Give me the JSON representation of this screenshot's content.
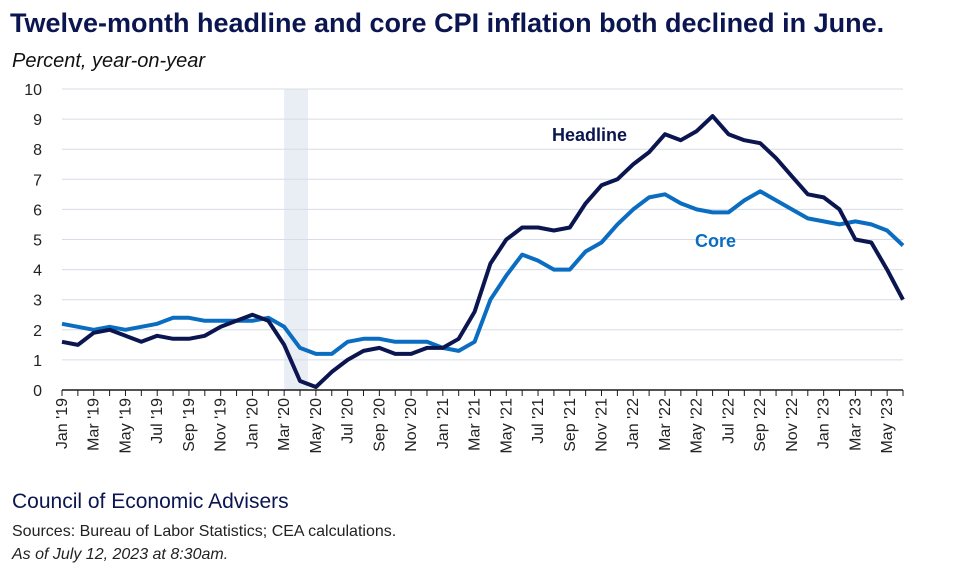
{
  "title": "Twelve-month headline and core CPI inflation both declined in June.",
  "subtitle": "Percent, year-on-year",
  "footer": {
    "org": "Council of Economic Advisers",
    "sources": "Sources: Bureau of Labor Statistics; CEA calculations.",
    "as_of": "As of July 12, 2023 at 8:30am."
  },
  "colors": {
    "headline": "#0b1650",
    "core": "#0a6dc2",
    "recession_shade": "#e9edf4",
    "grid": "#d7dce6"
  },
  "chart_data": {
    "type": "line",
    "title": "Twelve-month headline and core CPI inflation both declined in June.",
    "ylabel": "Percent, year-on-year",
    "ylim": [
      0,
      10
    ],
    "yticks": [
      0,
      1,
      2,
      3,
      4,
      5,
      6,
      7,
      8,
      9,
      10
    ],
    "grid": "horizontal",
    "shaded_range": [
      "Mar '20",
      "Apr '20"
    ],
    "x": [
      "Jan '19",
      "Feb '19",
      "Mar '19",
      "Apr '19",
      "May '19",
      "Jun '19",
      "Jul '19",
      "Aug '19",
      "Sep '19",
      "Oct '19",
      "Nov '19",
      "Dec '19",
      "Jan '20",
      "Feb '20",
      "Mar '20",
      "Apr '20",
      "May '20",
      "Jun '20",
      "Jul '20",
      "Aug '20",
      "Sep '20",
      "Oct '20",
      "Nov '20",
      "Dec '20",
      "Jan '21",
      "Feb '21",
      "Mar '21",
      "Apr '21",
      "May '21",
      "Jun '21",
      "Jul '21",
      "Aug '21",
      "Sep '21",
      "Oct '21",
      "Nov '21",
      "Dec '21",
      "Jan '22",
      "Feb '22",
      "Mar '22",
      "Apr '22",
      "May '22",
      "Jun '22",
      "Jul '22",
      "Aug '22",
      "Sep '22",
      "Oct '22",
      "Nov '22",
      "Dec '22",
      "Jan '23",
      "Feb '23",
      "Mar '23",
      "Apr '23",
      "May '23",
      "Jun '23"
    ],
    "xtick_labels": [
      "Jan '19",
      "Mar '19",
      "May '19",
      "Jul '19",
      "Sep '19",
      "Nov '19",
      "Jan '20",
      "Mar '20",
      "May '20",
      "Jul '20",
      "Sep '20",
      "Nov '20",
      "Jan '21",
      "Mar '21",
      "May '21",
      "Jul '21",
      "Sep '21",
      "Nov '21",
      "Jan '22",
      "Mar '22",
      "May '22",
      "Jul '22",
      "Sep '22",
      "Nov '22",
      "Jan '23",
      "Mar '23",
      "May '23"
    ],
    "series": [
      {
        "name": "Headline",
        "values": [
          1.6,
          1.5,
          1.9,
          2.0,
          1.8,
          1.6,
          1.8,
          1.7,
          1.7,
          1.8,
          2.1,
          2.3,
          2.5,
          2.3,
          1.5,
          0.3,
          0.1,
          0.6,
          1.0,
          1.3,
          1.4,
          1.2,
          1.2,
          1.4,
          1.4,
          1.7,
          2.6,
          4.2,
          5.0,
          5.4,
          5.4,
          5.3,
          5.4,
          6.2,
          6.8,
          7.0,
          7.5,
          7.9,
          8.5,
          8.3,
          8.6,
          9.1,
          8.5,
          8.3,
          8.2,
          7.7,
          7.1,
          6.5,
          6.4,
          6.0,
          5.0,
          4.9,
          4.0,
          3.0
        ]
      },
      {
        "name": "Core",
        "values": [
          2.2,
          2.1,
          2.0,
          2.1,
          2.0,
          2.1,
          2.2,
          2.4,
          2.4,
          2.3,
          2.3,
          2.3,
          2.3,
          2.4,
          2.1,
          1.4,
          1.2,
          1.2,
          1.6,
          1.7,
          1.7,
          1.6,
          1.6,
          1.6,
          1.4,
          1.3,
          1.6,
          3.0,
          3.8,
          4.5,
          4.3,
          4.0,
          4.0,
          4.6,
          4.9,
          5.5,
          6.0,
          6.4,
          6.5,
          6.2,
          6.0,
          5.9,
          5.9,
          6.3,
          6.6,
          6.3,
          6.0,
          5.7,
          5.6,
          5.5,
          5.6,
          5.5,
          5.3,
          4.8
        ]
      }
    ]
  }
}
